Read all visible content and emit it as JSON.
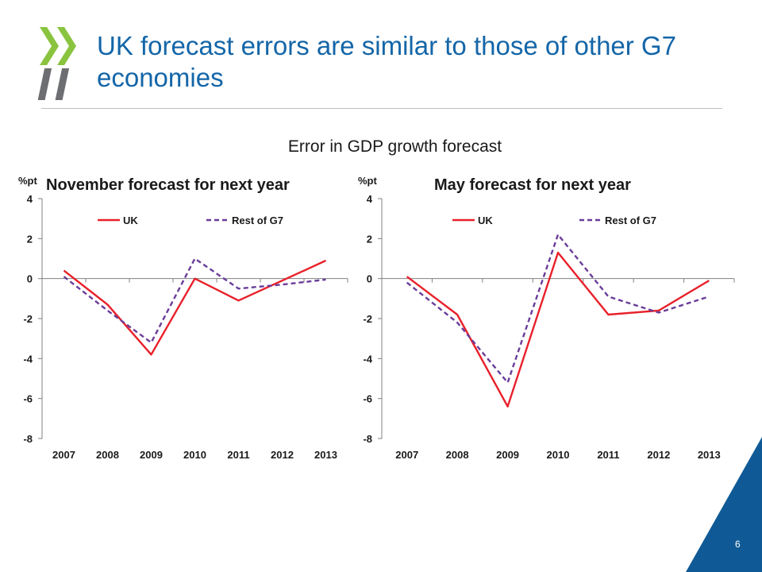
{
  "slide": {
    "title": "UK forecast errors are similar to those of other G7 economies",
    "subtitle": "Error in GDP growth forecast",
    "page_number": "6",
    "colors": {
      "title": "#1466a8",
      "logo_green": "#8ac43f",
      "logo_grey": "#6d6e71",
      "corner": "#0f5a96"
    }
  },
  "chart_data": [
    {
      "type": "line",
      "title": "November forecast for next year",
      "ylabel": "%pt",
      "ylim": [
        -8,
        4
      ],
      "yticks": [
        4,
        2,
        0,
        -2,
        -4,
        -6,
        -8
      ],
      "x": [
        "2007",
        "2008",
        "2009",
        "2010",
        "2011",
        "2012",
        "2013"
      ],
      "series": [
        {
          "name": "UK",
          "color": "#e8202a",
          "dash": false,
          "values": [
            0.4,
            -1.3,
            -3.8,
            0.0,
            -1.1,
            -0.1,
            0.9
          ]
        },
        {
          "name": "Rest of G7",
          "color": "#6a3d9a",
          "dash": true,
          "values": [
            0.1,
            -1.6,
            -3.2,
            1.0,
            -0.5,
            -0.3,
            -0.05
          ]
        }
      ],
      "legend": "top"
    },
    {
      "type": "line",
      "title": "May forecast for next year",
      "ylabel": "%pt",
      "ylim": [
        -8,
        4
      ],
      "yticks": [
        4,
        2,
        0,
        -2,
        -4,
        -6,
        -8
      ],
      "x": [
        "2007",
        "2008",
        "2009",
        "2010",
        "2011",
        "2012",
        "2013"
      ],
      "series": [
        {
          "name": "UK",
          "color": "#e8202a",
          "dash": false,
          "values": [
            0.1,
            -1.8,
            -6.4,
            1.3,
            -1.8,
            -1.6,
            -0.1
          ]
        },
        {
          "name": "Rest of G7",
          "color": "#6a3d9a",
          "dash": true,
          "values": [
            -0.2,
            -2.2,
            -5.2,
            2.2,
            -0.9,
            -1.7,
            -0.9
          ]
        }
      ],
      "legend": "top"
    }
  ]
}
